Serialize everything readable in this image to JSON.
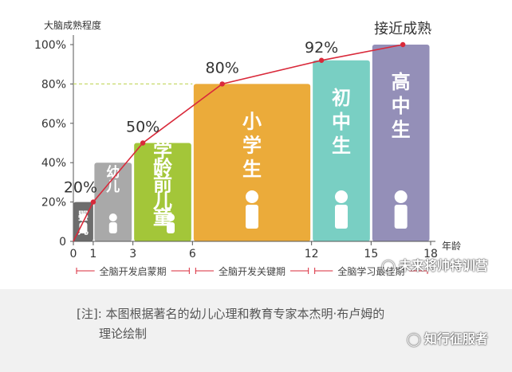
{
  "chart_data": {
    "type": "bar",
    "ylabel": "大脑成熟程度",
    "xlabel": "年龄",
    "ylim": [
      0,
      100
    ],
    "xlim": [
      0,
      18
    ],
    "yticks": [
      0,
      20,
      40,
      60,
      80,
      100
    ],
    "ytick_labels": [
      "0",
      "20%",
      "40%",
      "60%",
      "80%",
      "100%"
    ],
    "xticks": [
      0,
      1,
      3,
      6,
      12,
      15,
      18
    ],
    "reference_line": 80,
    "bars": [
      {
        "label": "婴儿",
        "x0": 0,
        "x1": 1,
        "value": 20,
        "color": "#6d6d6d"
      },
      {
        "label": "幼儿",
        "x0": 1,
        "x1": 3,
        "value": 40,
        "color": "#a9a9a9"
      },
      {
        "label": "学龄前儿童",
        "x0": 3,
        "x1": 6,
        "value": 50,
        "color": "#a3c639"
      },
      {
        "label": "小学生",
        "x0": 6,
        "x1": 12,
        "value": 80,
        "color": "#ebab3a"
      },
      {
        "label": "初中生",
        "x0": 12,
        "x1": 15,
        "value": 92,
        "color": "#79cfc3"
      },
      {
        "label": "高中生",
        "x0": 15,
        "x1": 18,
        "value": 100,
        "color": "#948fb8"
      }
    ],
    "series": [
      {
        "x": [
          0,
          1,
          3.5,
          7.5,
          12.5,
          16.6
        ],
        "y": [
          0,
          20,
          50,
          80,
          92,
          100
        ],
        "color": "#d9293a"
      }
    ],
    "annotations": [
      {
        "text": "20%",
        "x": 0.6,
        "y": 20
      },
      {
        "text": "50%",
        "x": 3.5,
        "y": 50
      },
      {
        "text": "80%",
        "x": 7.5,
        "y": 80
      },
      {
        "text": "92%",
        "x": 12.5,
        "y": 92
      },
      {
        "text": "接近成熟",
        "x": 16.6,
        "y": 100
      }
    ],
    "periods": [
      {
        "label": "全脑开发启蒙期",
        "x0": 0,
        "x1": 6
      },
      {
        "label": "全脑开发关键期",
        "x0": 6,
        "x1": 12
      },
      {
        "label": "全脑学习最佳期",
        "x0": 12,
        "x1": 18
      }
    ],
    "grid": false,
    "legend": "none"
  },
  "note": {
    "line1": "[注]: 本图根据著名的幼儿心理和教育专家本杰明·布卢姆的",
    "line2": "理论绘制"
  },
  "watermarks": {
    "top": "未来将帅特训营",
    "bottom": "知行征服者"
  },
  "colors": {
    "curve": "#d9293a",
    "axis": "#555555",
    "dashed": "#c8d96a"
  }
}
